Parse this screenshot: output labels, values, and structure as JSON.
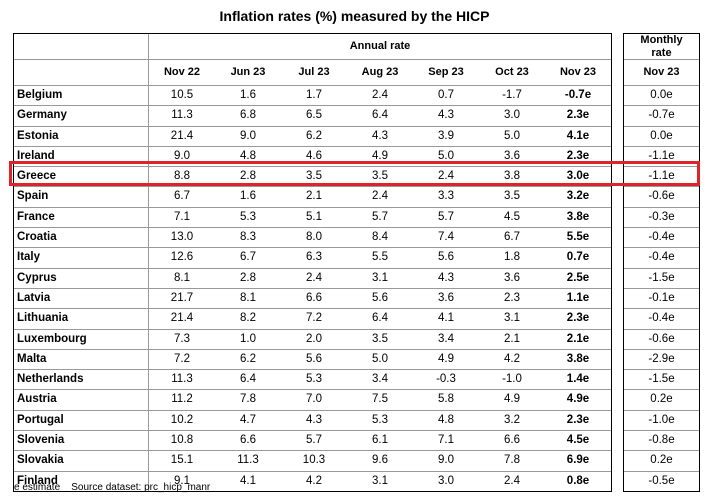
{
  "title": "Inflation rates (%) measured by the HICP",
  "annual_header": "Annual rate",
  "monthly_header_line1": "Monthly",
  "monthly_header_line2": "rate",
  "annual_columns": [
    "Nov 22",
    "Jun 23",
    "Jul 23",
    "Aug 23",
    "Sep 23",
    "Oct 23",
    "Nov 23"
  ],
  "monthly_column": "Nov 23",
  "rows": [
    {
      "country": "Belgium",
      "annual": [
        "10.5",
        "1.6",
        "1.7",
        "2.4",
        "0.7",
        "-1.7",
        "-0.7e"
      ],
      "monthly": "0.0e"
    },
    {
      "country": "Germany",
      "annual": [
        "11.3",
        "6.8",
        "6.5",
        "6.4",
        "4.3",
        "3.0",
        "2.3e"
      ],
      "monthly": "-0.7e"
    },
    {
      "country": "Estonia",
      "annual": [
        "21.4",
        "9.0",
        "6.2",
        "4.3",
        "3.9",
        "5.0",
        "4.1e"
      ],
      "monthly": "0.0e"
    },
    {
      "country": "Ireland",
      "annual": [
        "9.0",
        "4.8",
        "4.6",
        "4.9",
        "5.0",
        "3.6",
        "2.3e"
      ],
      "monthly": "-1.1e"
    },
    {
      "country": "Greece",
      "annual": [
        "8.8",
        "2.8",
        "3.5",
        "3.5",
        "2.4",
        "3.8",
        "3.0e"
      ],
      "monthly": "-1.1e"
    },
    {
      "country": "Spain",
      "annual": [
        "6.7",
        "1.6",
        "2.1",
        "2.4",
        "3.3",
        "3.5",
        "3.2e"
      ],
      "monthly": "-0.6e"
    },
    {
      "country": "France",
      "annual": [
        "7.1",
        "5.3",
        "5.1",
        "5.7",
        "5.7",
        "4.5",
        "3.8e"
      ],
      "monthly": "-0.3e"
    },
    {
      "country": "Croatia",
      "annual": [
        "13.0",
        "8.3",
        "8.0",
        "8.4",
        "7.4",
        "6.7",
        "5.5e"
      ],
      "monthly": "-0.4e"
    },
    {
      "country": "Italy",
      "annual": [
        "12.6",
        "6.7",
        "6.3",
        "5.5",
        "5.6",
        "1.8",
        "0.7e"
      ],
      "monthly": "-0.4e"
    },
    {
      "country": "Cyprus",
      "annual": [
        "8.1",
        "2.8",
        "2.4",
        "3.1",
        "4.3",
        "3.6",
        "2.5e"
      ],
      "monthly": "-1.5e"
    },
    {
      "country": "Latvia",
      "annual": [
        "21.7",
        "8.1",
        "6.6",
        "5.6",
        "3.6",
        "2.3",
        "1.1e"
      ],
      "monthly": "-0.1e"
    },
    {
      "country": "Lithuania",
      "annual": [
        "21.4",
        "8.2",
        "7.2",
        "6.4",
        "4.1",
        "3.1",
        "2.3e"
      ],
      "monthly": "-0.4e"
    },
    {
      "country": "Luxembourg",
      "annual": [
        "7.3",
        "1.0",
        "2.0",
        "3.5",
        "3.4",
        "2.1",
        "2.1e"
      ],
      "monthly": "-0.6e"
    },
    {
      "country": "Malta",
      "annual": [
        "7.2",
        "6.2",
        "5.6",
        "5.0",
        "4.9",
        "4.2",
        "3.8e"
      ],
      "monthly": "-2.9e"
    },
    {
      "country": "Netherlands",
      "annual": [
        "11.3",
        "6.4",
        "5.3",
        "3.4",
        "-0.3",
        "-1.0",
        "1.4e"
      ],
      "monthly": "-1.5e"
    },
    {
      "country": "Austria",
      "annual": [
        "11.2",
        "7.8",
        "7.0",
        "7.5",
        "5.8",
        "4.9",
        "4.9e"
      ],
      "monthly": "0.2e"
    },
    {
      "country": "Portugal",
      "annual": [
        "10.2",
        "4.7",
        "4.3",
        "5.3",
        "4.8",
        "3.2",
        "2.3e"
      ],
      "monthly": "-1.0e"
    },
    {
      "country": "Slovenia",
      "annual": [
        "10.8",
        "6.6",
        "5.7",
        "6.1",
        "7.1",
        "6.6",
        "4.5e"
      ],
      "monthly": "-0.8e"
    },
    {
      "country": "Slovakia",
      "annual": [
        "15.1",
        "11.3",
        "10.3",
        "9.6",
        "9.0",
        "7.8",
        "6.9e"
      ],
      "monthly": "0.2e"
    },
    {
      "country": "Finland",
      "annual": [
        "9.1",
        "4.1",
        "4.2",
        "3.1",
        "3.0",
        "2.4",
        "0.8e"
      ],
      "monthly": "-0.5e"
    }
  ],
  "highlight_color": "#e0222a",
  "footer": {
    "estimate_note": "e estimate",
    "source_label": "Source dataset:",
    "source_link": "prc_hicp_manr"
  }
}
